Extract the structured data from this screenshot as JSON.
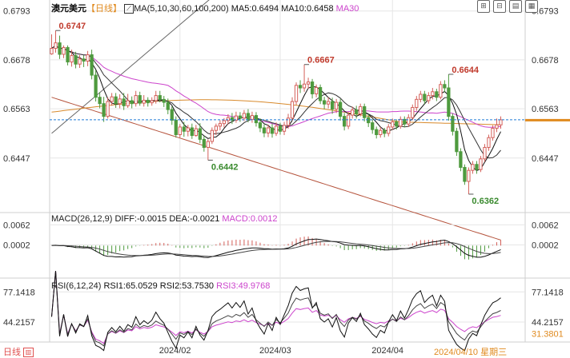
{
  "header": {
    "symbol": "澳元美元",
    "period": "【日线】",
    "ma_icon": "ma-settings-icon",
    "ma_label": "MA(5,10,30,60,100,200)",
    "ma5": "MA5:0.6494",
    "ma10": "MA10:0.6458",
    "ma30": "MA30"
  },
  "toolbar": {
    "buttons": [
      {
        "name": "crosshair-icon",
        "glyph": "⊞"
      },
      {
        "name": "drawing-tools-icon",
        "glyph": "⊟"
      },
      {
        "name": "indicator-icon",
        "glyph": "▤"
      },
      {
        "name": "more-options-icon",
        "glyph": "▦"
      }
    ]
  },
  "colors": {
    "up": "#d4605a",
    "down": "#4e9a3e",
    "ma5": "#111111",
    "ma10": "#333333",
    "ma30": "#cc44cc",
    "ma60": "#d88a2c",
    "ma100": "#b5533c",
    "ma200": "#666666",
    "current_line": "#1e7bd8",
    "current_badge": "#e08a1e",
    "grid": "#e6e6e6"
  },
  "status": {
    "period_label": "日线",
    "date_label": "2024/04/10",
    "weekday_label": "星期三"
  },
  "chart_data": [
    {
      "type": "candlestick",
      "panel": "price",
      "y_ticks": [
        "0.6793",
        "0.6678",
        "0.6563",
        "0.6447"
      ],
      "ylim": [
        0.633,
        0.68
      ],
      "current_value": 0.6537,
      "annotations": [
        {
          "text": "0.6747",
          "index": 1,
          "value": 0.6747,
          "kind": "high"
        },
        {
          "text": "0.6667",
          "index": 63,
          "value": 0.6667,
          "kind": "high"
        },
        {
          "text": "0.6644",
          "index": 99,
          "value": 0.6644,
          "kind": "high"
        },
        {
          "text": "0.6442",
          "index": 39,
          "value": 0.6442,
          "kind": "low"
        },
        {
          "text": "0.6362",
          "index": 104,
          "value": 0.6362,
          "kind": "low"
        }
      ],
      "x_labels": [
        {
          "text": "2024/02",
          "index": 32
        },
        {
          "text": "2024/03",
          "index": 57
        },
        {
          "text": "2024/04",
          "index": 85
        }
      ],
      "candles": [
        [
          0.6692,
          0.6705,
          0.669,
          0.6738
        ],
        [
          0.6705,
          0.6718,
          0.6695,
          0.6747
        ],
        [
          0.6718,
          0.6691,
          0.668,
          0.6735
        ],
        [
          0.6691,
          0.6707,
          0.6682,
          0.6712
        ],
        [
          0.6707,
          0.6673,
          0.6665,
          0.6712
        ],
        [
          0.6673,
          0.6688,
          0.6662,
          0.6702
        ],
        [
          0.6688,
          0.6668,
          0.6658,
          0.6697
        ],
        [
          0.6668,
          0.668,
          0.6659,
          0.6689
        ],
        [
          0.668,
          0.6675,
          0.6661,
          0.6689
        ],
        [
          0.6675,
          0.669,
          0.6663,
          0.6699
        ],
        [
          0.669,
          0.6642,
          0.6632,
          0.6702
        ],
        [
          0.6642,
          0.659,
          0.658,
          0.6654
        ],
        [
          0.659,
          0.6575,
          0.6564,
          0.6602
        ],
        [
          0.6575,
          0.6545,
          0.6532,
          0.6591
        ],
        [
          0.6545,
          0.658,
          0.654,
          0.659
        ],
        [
          0.658,
          0.6591,
          0.657,
          0.66
        ],
        [
          0.6591,
          0.6575,
          0.6565,
          0.66
        ],
        [
          0.6575,
          0.6586,
          0.6564,
          0.6597
        ],
        [
          0.6586,
          0.657,
          0.656,
          0.66
        ],
        [
          0.657,
          0.6582,
          0.6565,
          0.6598
        ],
        [
          0.6582,
          0.6575,
          0.6564,
          0.6592
        ],
        [
          0.6575,
          0.6594,
          0.6568,
          0.6605
        ],
        [
          0.6594,
          0.6576,
          0.657,
          0.6603
        ],
        [
          0.6576,
          0.6583,
          0.6568,
          0.6595
        ],
        [
          0.6583,
          0.6577,
          0.6568,
          0.659
        ],
        [
          0.6577,
          0.6582,
          0.657,
          0.659
        ],
        [
          0.6582,
          0.6594,
          0.6575,
          0.6605
        ],
        [
          0.6594,
          0.6585,
          0.6578,
          0.6605
        ],
        [
          0.6585,
          0.6578,
          0.6567,
          0.6593
        ],
        [
          0.6578,
          0.6561,
          0.655,
          0.6587
        ],
        [
          0.6561,
          0.6536,
          0.6525,
          0.6569
        ],
        [
          0.6536,
          0.6502,
          0.6495,
          0.6545
        ],
        [
          0.6502,
          0.652,
          0.6495,
          0.6527
        ],
        [
          0.652,
          0.651,
          0.6497,
          0.6532
        ],
        [
          0.651,
          0.6518,
          0.6498,
          0.6525
        ],
        [
          0.6518,
          0.65,
          0.6492,
          0.6528
        ],
        [
          0.65,
          0.6516,
          0.6497,
          0.6525
        ],
        [
          0.6516,
          0.6491,
          0.6482,
          0.6529
        ],
        [
          0.6491,
          0.6472,
          0.6462,
          0.6499
        ],
        [
          0.6472,
          0.6486,
          0.6442,
          0.6491
        ],
        [
          0.6486,
          0.6512,
          0.648,
          0.6519
        ],
        [
          0.6512,
          0.6522,
          0.6501,
          0.6528
        ],
        [
          0.6522,
          0.6528,
          0.6512,
          0.6536
        ],
        [
          0.6528,
          0.6535,
          0.6519,
          0.6541
        ],
        [
          0.6535,
          0.6542,
          0.6526,
          0.655
        ],
        [
          0.6542,
          0.6536,
          0.6527,
          0.6553
        ],
        [
          0.6536,
          0.6546,
          0.653,
          0.6556
        ],
        [
          0.6546,
          0.6541,
          0.6532,
          0.6555
        ],
        [
          0.6541,
          0.6552,
          0.6534,
          0.656
        ],
        [
          0.6552,
          0.6538,
          0.6531,
          0.6562
        ],
        [
          0.6538,
          0.6547,
          0.653,
          0.6556
        ],
        [
          0.6547,
          0.653,
          0.6521,
          0.6555
        ],
        [
          0.653,
          0.6518,
          0.6508,
          0.654
        ],
        [
          0.6518,
          0.6506,
          0.6496,
          0.6526
        ],
        [
          0.6506,
          0.6518,
          0.6496,
          0.6526
        ],
        [
          0.6518,
          0.6505,
          0.6495,
          0.6528
        ],
        [
          0.6505,
          0.6522,
          0.6499,
          0.6531
        ],
        [
          0.6522,
          0.651,
          0.6502,
          0.653
        ],
        [
          0.651,
          0.6524,
          0.6501,
          0.6532
        ],
        [
          0.6524,
          0.6541,
          0.6516,
          0.6551
        ],
        [
          0.6541,
          0.658,
          0.6535,
          0.659
        ],
        [
          0.658,
          0.6618,
          0.6572,
          0.6625
        ],
        [
          0.6618,
          0.6612,
          0.66,
          0.663
        ],
        [
          0.6612,
          0.6621,
          0.6603,
          0.6667
        ],
        [
          0.6621,
          0.6626,
          0.661,
          0.6636
        ],
        [
          0.6626,
          0.6598,
          0.6587,
          0.6633
        ],
        [
          0.6598,
          0.6613,
          0.659,
          0.662
        ],
        [
          0.6613,
          0.6582,
          0.6574,
          0.662
        ],
        [
          0.6582,
          0.6574,
          0.6562,
          0.6591
        ],
        [
          0.6574,
          0.658,
          0.6564,
          0.659
        ],
        [
          0.658,
          0.6562,
          0.6551,
          0.6589
        ],
        [
          0.6562,
          0.6578,
          0.6553,
          0.6586
        ],
        [
          0.6578,
          0.6545,
          0.6535,
          0.6586
        ],
        [
          0.6545,
          0.6522,
          0.6512,
          0.6553
        ],
        [
          0.6522,
          0.6548,
          0.6515,
          0.6555
        ],
        [
          0.6548,
          0.656,
          0.654,
          0.6568
        ],
        [
          0.656,
          0.6551,
          0.654,
          0.657
        ],
        [
          0.6551,
          0.6568,
          0.6545,
          0.6575
        ],
        [
          0.6568,
          0.6542,
          0.6533,
          0.6575
        ],
        [
          0.6542,
          0.653,
          0.652,
          0.655
        ],
        [
          0.653,
          0.6514,
          0.6504,
          0.6538
        ],
        [
          0.6514,
          0.6502,
          0.6493,
          0.6521
        ],
        [
          0.6502,
          0.6512,
          0.6495,
          0.652
        ],
        [
          0.6512,
          0.6505,
          0.6496,
          0.6518
        ],
        [
          0.6505,
          0.652,
          0.6498,
          0.6527
        ],
        [
          0.652,
          0.6532,
          0.6513,
          0.654
        ],
        [
          0.6532,
          0.6522,
          0.6514,
          0.6538
        ],
        [
          0.6522,
          0.6538,
          0.6516,
          0.6545
        ],
        [
          0.6538,
          0.6527,
          0.6519,
          0.6545
        ],
        [
          0.6527,
          0.6542,
          0.652,
          0.655
        ],
        [
          0.6542,
          0.6566,
          0.6536,
          0.6573
        ],
        [
          0.6566,
          0.6585,
          0.6558,
          0.6593
        ],
        [
          0.6585,
          0.6597,
          0.6578,
          0.6605
        ],
        [
          0.6597,
          0.6582,
          0.6574,
          0.6605
        ],
        [
          0.6582,
          0.6594,
          0.6575,
          0.6602
        ],
        [
          0.6594,
          0.6603,
          0.6585,
          0.6612
        ],
        [
          0.6603,
          0.659,
          0.6581,
          0.661
        ],
        [
          0.659,
          0.662,
          0.6585,
          0.6628
        ],
        [
          0.662,
          0.6612,
          0.6602,
          0.663
        ],
        [
          0.6612,
          0.6545,
          0.6535,
          0.6644
        ],
        [
          0.6545,
          0.651,
          0.65,
          0.6552
        ],
        [
          0.651,
          0.6462,
          0.6452,
          0.6518
        ],
        [
          0.6462,
          0.6425,
          0.6416,
          0.647
        ],
        [
          0.6425,
          0.6392,
          0.6384,
          0.6432
        ],
        [
          0.6392,
          0.6418,
          0.6362,
          0.6425
        ],
        [
          0.6418,
          0.6432,
          0.641,
          0.644
        ],
        [
          0.6432,
          0.642,
          0.641,
          0.644
        ],
        [
          0.642,
          0.6445,
          0.6414,
          0.6452
        ],
        [
          0.6445,
          0.6472,
          0.6438,
          0.648
        ],
        [
          0.6472,
          0.6495,
          0.6464,
          0.6502
        ],
        [
          0.6495,
          0.6517,
          0.6488,
          0.6524
        ],
        [
          0.6517,
          0.6525,
          0.6508,
          0.654
        ],
        [
          0.6525,
          0.6537,
          0.6516,
          0.6545
        ]
      ]
    },
    {
      "type": "macd",
      "panel": "macd",
      "title": "MACD(26,12,9)",
      "diff_label": "DIFF:-0.0015",
      "dea_label": "DEA:-0.0021",
      "macd_label": "MACD:0.0012",
      "y_ticks": [
        "0.0062",
        "0.0002"
      ],
      "ylim": [
        -0.0078,
        0.007
      ]
    },
    {
      "type": "rsi",
      "panel": "rsi",
      "title": "RSI(6,12,24)",
      "rsi1_label": "RSI1:65.0529",
      "rsi2_label": "RSI2:53.7530",
      "rsi3_label": "RSI3:49.9768",
      "y_ticks": [
        "77.1418",
        "44.2157"
      ],
      "ymin_label": "31.3801",
      "ylim": [
        25,
        80
      ]
    }
  ]
}
